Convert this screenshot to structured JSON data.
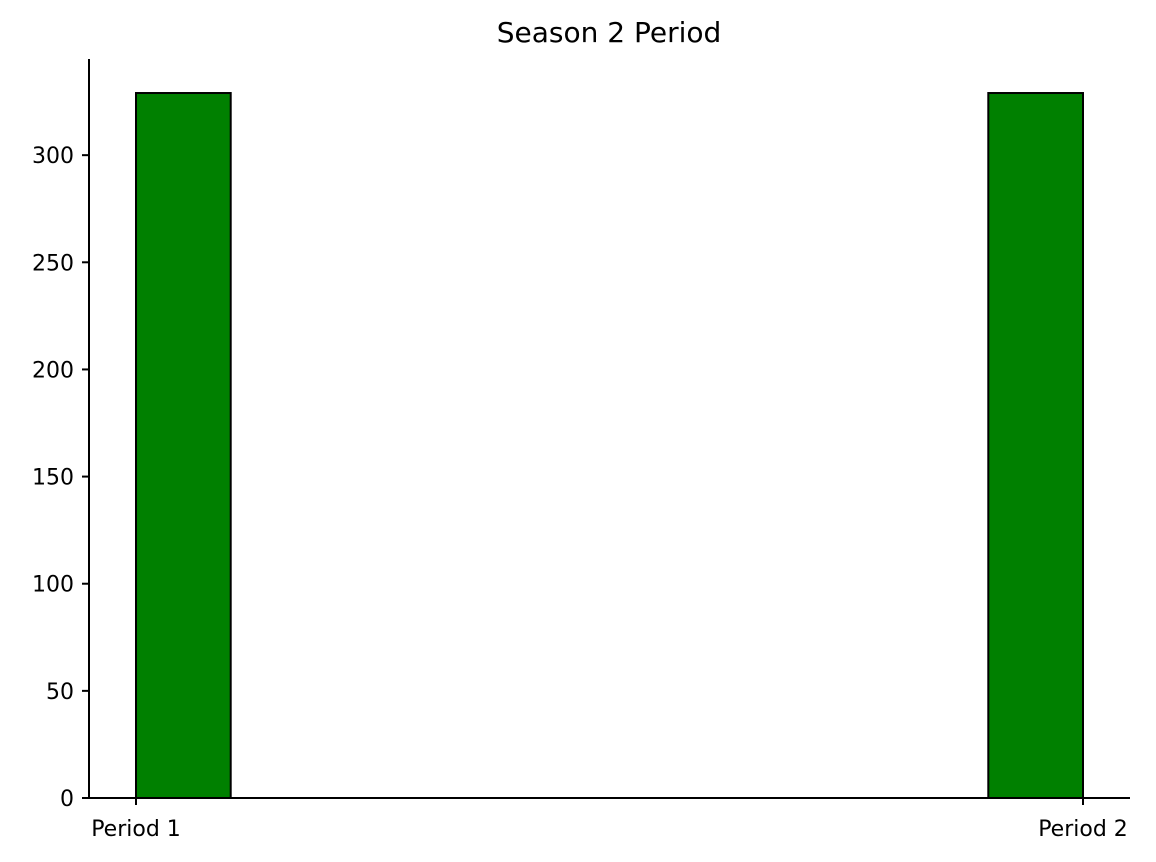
{
  "chart_data": {
    "type": "bar",
    "title": "Season 2 Period",
    "xlabel": "",
    "ylabel": "",
    "x_tick_labels": [
      "Period 1",
      "Period 2"
    ],
    "x_range": [
      0,
      1
    ],
    "bars": [
      {
        "x_start": 0.0,
        "x_end": 0.1,
        "value": 329
      },
      {
        "x_start": 0.9,
        "x_end": 1.0,
        "value": 329
      }
    ],
    "y_ticks": [
      0,
      50,
      100,
      150,
      200,
      250,
      300
    ],
    "ylim": [
      0,
      345
    ],
    "grid": false,
    "legend": false,
    "bar_color": "#008000",
    "edge_color": "#000000"
  }
}
